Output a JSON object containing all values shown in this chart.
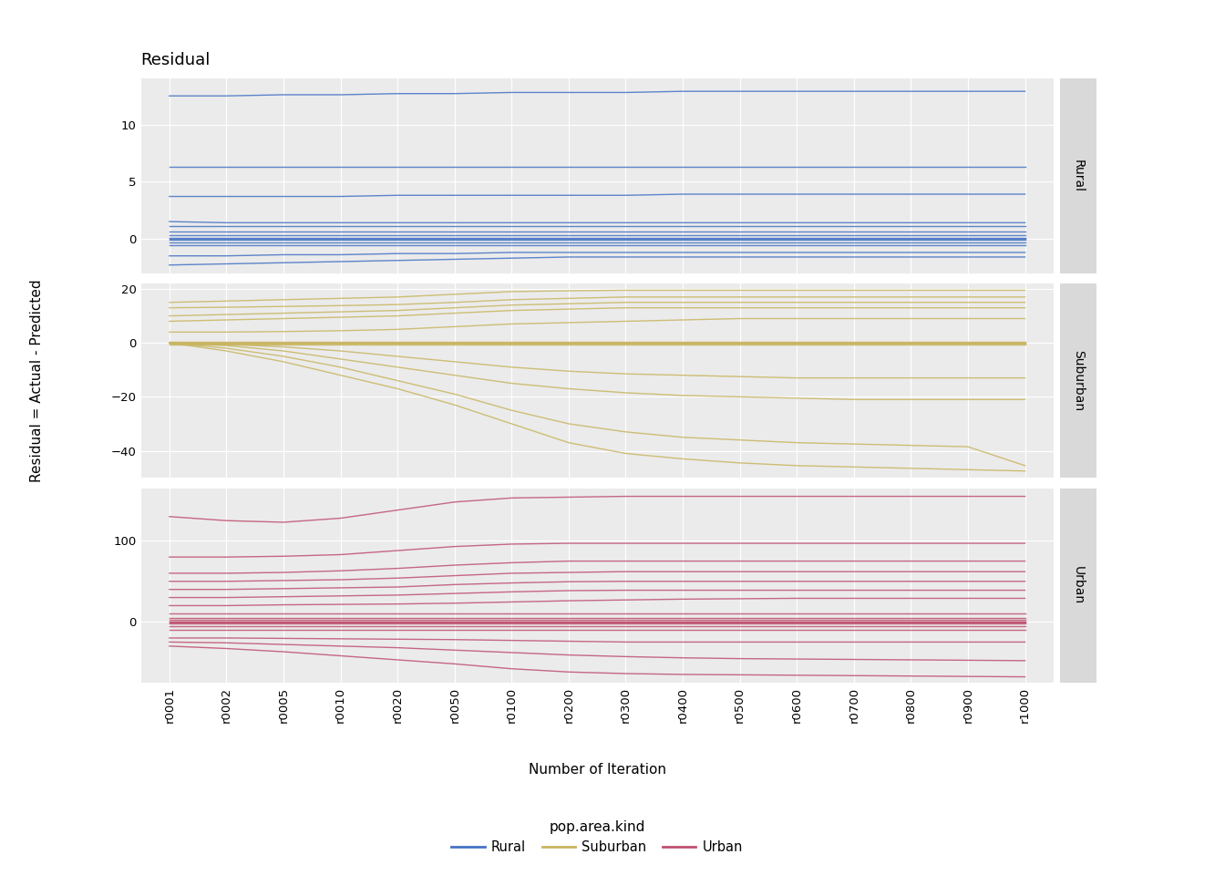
{
  "title": "Residual",
  "ylabel": "Residual = Actual - Predicted",
  "xlabel": "Number of Iteration",
  "legend_title": "pop.area.kind",
  "x_labels": [
    "r0001",
    "r0002",
    "r0005",
    "r0010",
    "r0020",
    "r0050",
    "r0100",
    "r0200",
    "r0300",
    "r0400",
    "r0500",
    "r0600",
    "r0700",
    "r0800",
    "r0900",
    "r1000"
  ],
  "background_color": "#EBEBEB",
  "strip_color": "#D9D9D9",
  "colors": {
    "Rural": "#4472C4",
    "Suburban": "#C8B560",
    "Urban": "#BE5070"
  },
  "rural": {
    "lines": [
      [
        12.5,
        12.5,
        12.6,
        12.6,
        12.7,
        12.7,
        12.8,
        12.8,
        12.8,
        12.9,
        12.9,
        12.9,
        12.9,
        12.9,
        12.9,
        12.9
      ],
      [
        6.3,
        6.3,
        6.3,
        6.3,
        6.3,
        6.3,
        6.3,
        6.3,
        6.3,
        6.3,
        6.3,
        6.3,
        6.3,
        6.3,
        6.3,
        6.3
      ],
      [
        3.7,
        3.7,
        3.7,
        3.7,
        3.8,
        3.8,
        3.8,
        3.8,
        3.8,
        3.9,
        3.9,
        3.9,
        3.9,
        3.9,
        3.9,
        3.9
      ],
      [
        1.5,
        1.4,
        1.4,
        1.4,
        1.4,
        1.4,
        1.4,
        1.4,
        1.4,
        1.4,
        1.4,
        1.4,
        1.4,
        1.4,
        1.4,
        1.4
      ],
      [
        1.1,
        1.1,
        1.1,
        1.1,
        1.1,
        1.1,
        1.1,
        1.1,
        1.1,
        1.1,
        1.1,
        1.1,
        1.1,
        1.1,
        1.1,
        1.1
      ],
      [
        0.6,
        0.6,
        0.6,
        0.6,
        0.6,
        0.6,
        0.6,
        0.6,
        0.6,
        0.6,
        0.6,
        0.6,
        0.6,
        0.6,
        0.6,
        0.6
      ],
      [
        0.3,
        0.3,
        0.3,
        0.3,
        0.3,
        0.3,
        0.3,
        0.3,
        0.3,
        0.3,
        0.3,
        0.3,
        0.3,
        0.3,
        0.3,
        0.3
      ],
      [
        0.1,
        0.1,
        0.1,
        0.1,
        0.1,
        0.1,
        0.1,
        0.1,
        0.1,
        0.1,
        0.1,
        0.1,
        0.1,
        0.1,
        0.1,
        0.1
      ],
      [
        0.0,
        0.0,
        0.0,
        0.0,
        0.0,
        0.0,
        0.0,
        0.0,
        0.0,
        0.0,
        0.0,
        0.0,
        0.0,
        0.0,
        0.0,
        0.0
      ],
      [
        -0.1,
        -0.1,
        -0.1,
        -0.1,
        -0.1,
        -0.1,
        -0.1,
        -0.1,
        -0.1,
        -0.1,
        -0.1,
        -0.1,
        -0.1,
        -0.1,
        -0.1,
        -0.1
      ],
      [
        -0.3,
        -0.3,
        -0.3,
        -0.3,
        -0.3,
        -0.3,
        -0.3,
        -0.3,
        -0.3,
        -0.3,
        -0.3,
        -0.3,
        -0.3,
        -0.3,
        -0.3,
        -0.3
      ],
      [
        -0.6,
        -0.6,
        -0.6,
        -0.6,
        -0.6,
        -0.6,
        -0.6,
        -0.6,
        -0.6,
        -0.6,
        -0.6,
        -0.6,
        -0.6,
        -0.6,
        -0.6,
        -0.6
      ],
      [
        -1.5,
        -1.5,
        -1.4,
        -1.4,
        -1.3,
        -1.3,
        -1.2,
        -1.2,
        -1.2,
        -1.2,
        -1.2,
        -1.2,
        -1.2,
        -1.2,
        -1.2,
        -1.2
      ],
      [
        -2.3,
        -2.2,
        -2.1,
        -2.0,
        -1.9,
        -1.8,
        -1.7,
        -1.6,
        -1.6,
        -1.6,
        -1.6,
        -1.6,
        -1.6,
        -1.6,
        -1.6,
        -1.6
      ]
    ],
    "ylim": [
      -3.0,
      14.0
    ],
    "yticks": [
      0,
      5,
      10
    ]
  },
  "suburban": {
    "lines": [
      [
        15.0,
        15.5,
        16.0,
        16.5,
        17.0,
        18.0,
        19.0,
        19.3,
        19.5,
        19.5,
        19.5,
        19.5,
        19.5,
        19.5,
        19.5,
        19.5
      ],
      [
        13.0,
        13.2,
        13.5,
        13.8,
        14.2,
        15.0,
        16.0,
        16.5,
        17.0,
        17.0,
        17.0,
        17.0,
        17.0,
        17.0,
        17.0,
        17.0
      ],
      [
        10.0,
        10.5,
        11.0,
        11.5,
        12.0,
        13.0,
        14.0,
        14.5,
        15.0,
        15.0,
        15.0,
        15.0,
        15.0,
        15.0,
        15.0,
        15.0
      ],
      [
        8.0,
        8.5,
        9.0,
        9.5,
        10.0,
        11.0,
        12.0,
        12.5,
        13.0,
        13.0,
        13.0,
        13.0,
        13.0,
        13.0,
        13.0,
        13.0
      ],
      [
        4.0,
        4.0,
        4.2,
        4.5,
        5.0,
        6.0,
        7.0,
        7.5,
        8.0,
        8.5,
        9.0,
        9.0,
        9.0,
        9.0,
        9.0,
        9.0
      ],
      [
        0.5,
        0.5,
        0.5,
        0.5,
        0.5,
        0.5,
        0.5,
        0.5,
        0.5,
        0.5,
        0.5,
        0.5,
        0.5,
        0.5,
        0.5,
        0.5
      ],
      [
        0.2,
        0.2,
        0.2,
        0.2,
        0.2,
        0.2,
        0.2,
        0.2,
        0.2,
        0.2,
        0.2,
        0.2,
        0.2,
        0.2,
        0.2,
        0.2
      ],
      [
        0.0,
        0.0,
        0.0,
        0.0,
        0.0,
        0.0,
        0.0,
        0.0,
        0.0,
        0.0,
        0.0,
        0.0,
        0.0,
        0.0,
        0.0,
        0.0
      ],
      [
        -0.2,
        -0.2,
        -0.2,
        -0.2,
        -0.2,
        -0.2,
        -0.2,
        -0.2,
        -0.2,
        -0.2,
        -0.2,
        -0.2,
        -0.2,
        -0.2,
        -0.2,
        -0.2
      ],
      [
        -0.5,
        -0.5,
        -0.5,
        -0.5,
        -0.5,
        -0.5,
        -0.5,
        -0.5,
        -0.5,
        -0.5,
        -0.5,
        -0.5,
        -0.5,
        -0.5,
        -0.5,
        -0.5
      ],
      [
        0.0,
        -0.5,
        -1.5,
        -3.0,
        -5.0,
        -7.0,
        -9.0,
        -10.5,
        -11.5,
        -12.0,
        -12.5,
        -13.0,
        -13.0,
        -13.0,
        -13.0,
        -13.0
      ],
      [
        0.0,
        -1.0,
        -3.0,
        -6.0,
        -9.0,
        -12.0,
        -15.0,
        -17.0,
        -18.5,
        -19.5,
        -20.0,
        -20.5,
        -21.0,
        -21.0,
        -21.0,
        -21.0
      ],
      [
        0.0,
        -2.0,
        -5.0,
        -9.0,
        -14.0,
        -19.0,
        -25.0,
        -30.0,
        -33.0,
        -35.0,
        -36.0,
        -37.0,
        -37.5,
        -38.0,
        -38.5,
        -45.5
      ],
      [
        0.0,
        -3.0,
        -7.0,
        -12.0,
        -17.0,
        -23.0,
        -30.0,
        -37.0,
        -41.0,
        -43.0,
        -44.5,
        -45.5,
        -46.0,
        -46.5,
        -47.0,
        -47.5
      ]
    ],
    "ylim": [
      -50,
      22
    ],
    "yticks": [
      -40,
      -20,
      0,
      20
    ]
  },
  "urban": {
    "lines": [
      [
        130.0,
        125.0,
        123.0,
        128.0,
        138.0,
        148.0,
        153.0,
        154.0,
        155.0,
        155.0,
        155.0,
        155.0,
        155.0,
        155.0,
        155.0,
        155.0
      ],
      [
        80.0,
        80.0,
        81.0,
        83.0,
        88.0,
        93.0,
        96.0,
        97.0,
        97.0,
        97.0,
        97.0,
        97.0,
        97.0,
        97.0,
        97.0,
        97.0
      ],
      [
        60.0,
        60.0,
        61.0,
        63.0,
        66.0,
        70.0,
        73.0,
        75.0,
        75.0,
        75.0,
        75.0,
        75.0,
        75.0,
        75.0,
        75.0,
        75.0
      ],
      [
        50.0,
        50.0,
        51.0,
        52.0,
        54.0,
        57.0,
        60.0,
        61.0,
        62.0,
        62.0,
        62.0,
        62.0,
        62.0,
        62.0,
        62.0,
        62.0
      ],
      [
        40.0,
        40.0,
        41.0,
        42.0,
        43.0,
        46.0,
        48.0,
        49.5,
        50.0,
        50.0,
        50.0,
        50.0,
        50.0,
        50.0,
        50.0,
        50.0
      ],
      [
        30.0,
        30.0,
        31.0,
        32.0,
        33.0,
        35.0,
        37.0,
        38.5,
        39.0,
        39.0,
        39.0,
        39.0,
        39.0,
        39.0,
        39.0,
        39.0
      ],
      [
        20.0,
        20.0,
        21.0,
        21.5,
        22.0,
        23.0,
        24.5,
        26.0,
        27.0,
        28.0,
        28.5,
        29.0,
        29.0,
        29.0,
        29.0,
        29.0
      ],
      [
        10.0,
        10.0,
        10.0,
        10.0,
        10.0,
        10.0,
        10.0,
        10.0,
        10.0,
        10.0,
        10.0,
        10.0,
        10.0,
        10.0,
        10.0,
        10.0
      ],
      [
        5.0,
        5.0,
        5.0,
        5.0,
        5.0,
        5.0,
        5.0,
        5.0,
        5.0,
        5.0,
        5.0,
        5.0,
        5.0,
        5.0,
        5.0,
        5.0
      ],
      [
        2.0,
        2.0,
        2.0,
        2.0,
        2.0,
        2.0,
        2.0,
        2.0,
        2.0,
        2.0,
        2.0,
        2.0,
        2.0,
        2.0,
        2.0,
        2.0
      ],
      [
        0.5,
        0.5,
        0.5,
        0.5,
        0.5,
        0.5,
        0.5,
        0.5,
        0.5,
        0.5,
        0.5,
        0.5,
        0.5,
        0.5,
        0.5,
        0.5
      ],
      [
        0.0,
        0.0,
        0.0,
        0.0,
        0.0,
        0.0,
        0.0,
        0.0,
        0.0,
        0.0,
        0.0,
        0.0,
        0.0,
        0.0,
        0.0,
        0.0
      ],
      [
        -0.5,
        -0.5,
        -0.5,
        -0.5,
        -0.5,
        -0.5,
        -0.5,
        -0.5,
        -0.5,
        -0.5,
        -0.5,
        -0.5,
        -0.5,
        -0.5,
        -0.5,
        -0.5
      ],
      [
        -2.0,
        -2.0,
        -2.0,
        -2.0,
        -2.0,
        -2.0,
        -2.0,
        -2.0,
        -2.0,
        -2.0,
        -2.0,
        -2.0,
        -2.0,
        -2.0,
        -2.0,
        -2.0
      ],
      [
        -5.0,
        -5.0,
        -5.0,
        -5.0,
        -5.0,
        -5.0,
        -5.0,
        -5.0,
        -5.0,
        -5.0,
        -5.0,
        -5.0,
        -5.0,
        -5.0,
        -5.0,
        -5.0
      ],
      [
        -10.0,
        -10.0,
        -10.0,
        -10.0,
        -10.0,
        -10.0,
        -10.0,
        -10.0,
        -10.0,
        -10.0,
        -10.0,
        -10.0,
        -10.0,
        -10.0,
        -10.0,
        -10.0
      ],
      [
        -20.0,
        -20.0,
        -20.5,
        -21.0,
        -21.5,
        -22.0,
        -23.0,
        -24.0,
        -25.0,
        -25.0,
        -25.0,
        -25.0,
        -25.0,
        -25.0,
        -25.0,
        -25.0
      ],
      [
        -25.0,
        -26.0,
        -28.0,
        -30.0,
        -32.0,
        -35.0,
        -38.0,
        -41.0,
        -43.0,
        -44.5,
        -45.5,
        -46.0,
        -46.5,
        -47.0,
        -47.5,
        -48.0
      ],
      [
        -30.0,
        -33.0,
        -37.0,
        -42.0,
        -47.0,
        -52.0,
        -58.0,
        -62.0,
        -64.0,
        -65.0,
        -65.5,
        -66.0,
        -66.5,
        -67.0,
        -67.5,
        -68.0
      ]
    ],
    "ylim": [
      -75,
      165
    ],
    "yticks": [
      0,
      100
    ]
  },
  "fig_width": 13.44,
  "fig_height": 9.6,
  "dpi": 100
}
